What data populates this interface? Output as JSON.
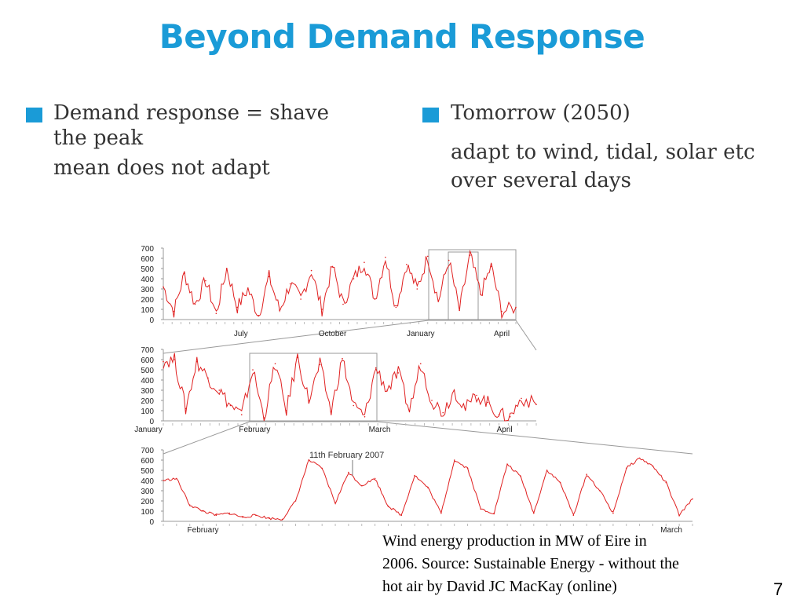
{
  "slide": {
    "title": "Beyond Demand Response",
    "left_bullet": {
      "line1": "Demand response = shave",
      "line2": "the peak",
      "line3": "mean does not adapt"
    },
    "right_bullet": {
      "line1": "Tomorrow (2050)",
      "line2": "adapt to wind, tidal, solar etc",
      "line3": "over several days"
    },
    "caption": "Wind energy production in MW of Eire in\n2006. Source: Sustainable Energy - without the\nhot air  by David JC MacKay (online)",
    "page_number": "7",
    "accent_color": "#1a9bd7",
    "bullet_icon": "square-bullet"
  },
  "chart_data": [
    {
      "type": "line",
      "color": "#e02020",
      "ylim": [
        0,
        700
      ],
      "yticks": [
        "0",
        "100",
        "200",
        "300",
        "400",
        "500",
        "600",
        "700"
      ],
      "xtick_labels": [
        "July",
        "October",
        "January",
        "April"
      ],
      "x": [
        0,
        0.03,
        0.06,
        0.09,
        0.12,
        0.15,
        0.18,
        0.21,
        0.24,
        0.27,
        0.3,
        0.33,
        0.36,
        0.39,
        0.42,
        0.45,
        0.48,
        0.51,
        0.54,
        0.57,
        0.6,
        0.63,
        0.66,
        0.69,
        0.72,
        0.75,
        0.78,
        0.81,
        0.84,
        0.87,
        0.9,
        0.93,
        0.96,
        1.0
      ],
      "values": [
        320,
        80,
        450,
        150,
        380,
        60,
        500,
        120,
        300,
        40,
        420,
        90,
        350,
        200,
        480,
        100,
        520,
        150,
        400,
        560,
        200,
        610,
        120,
        540,
        300,
        620,
        180,
        580,
        90,
        630,
        250,
        520,
        80,
        120
      ]
    },
    {
      "type": "line",
      "color": "#e02020",
      "ylim": [
        0,
        700
      ],
      "yticks": [
        "0",
        "100",
        "200",
        "300",
        "400",
        "500",
        "600",
        "700"
      ],
      "xtick_labels": [
        "January",
        "February",
        "March",
        "April"
      ],
      "x": [
        0,
        0.03,
        0.06,
        0.09,
        0.12,
        0.15,
        0.18,
        0.21,
        0.24,
        0.27,
        0.3,
        0.33,
        0.36,
        0.39,
        0.42,
        0.45,
        0.48,
        0.51,
        0.54,
        0.57,
        0.6,
        0.63,
        0.66,
        0.69,
        0.72,
        0.75,
        0.78,
        0.81,
        0.84,
        0.87,
        0.9,
        0.93,
        0.96,
        1.0
      ],
      "values": [
        580,
        600,
        120,
        580,
        420,
        300,
        150,
        60,
        500,
        30,
        560,
        100,
        620,
        200,
        550,
        90,
        610,
        150,
        40,
        520,
        300,
        470,
        100,
        560,
        200,
        80,
        300,
        120,
        250,
        180,
        60,
        40,
        220,
        160
      ]
    },
    {
      "type": "line",
      "color": "#e02020",
      "ylim": [
        0,
        700
      ],
      "yticks": [
        "0",
        "100",
        "200",
        "300",
        "400",
        "500",
        "600",
        "700"
      ],
      "xtick_labels": [
        "February",
        "March"
      ],
      "annotation": "11th February 2007",
      "x": [
        0,
        0.025,
        0.05,
        0.075,
        0.1,
        0.125,
        0.15,
        0.175,
        0.2,
        0.225,
        0.25,
        0.275,
        0.3,
        0.325,
        0.35,
        0.375,
        0.4,
        0.425,
        0.45,
        0.475,
        0.5,
        0.525,
        0.55,
        0.575,
        0.6,
        0.625,
        0.65,
        0.675,
        0.7,
        0.725,
        0.75,
        0.775,
        0.8,
        0.825,
        0.85,
        0.875,
        0.9,
        0.925,
        0.95,
        0.975,
        1.0
      ],
      "values": [
        400,
        420,
        160,
        100,
        60,
        80,
        40,
        60,
        30,
        20,
        200,
        600,
        520,
        180,
        480,
        350,
        420,
        150,
        60,
        450,
        330,
        80,
        600,
        520,
        120,
        80,
        560,
        440,
        80,
        500,
        380,
        60,
        460,
        300,
        80,
        520,
        620,
        540,
        380,
        60,
        220
      ]
    }
  ]
}
